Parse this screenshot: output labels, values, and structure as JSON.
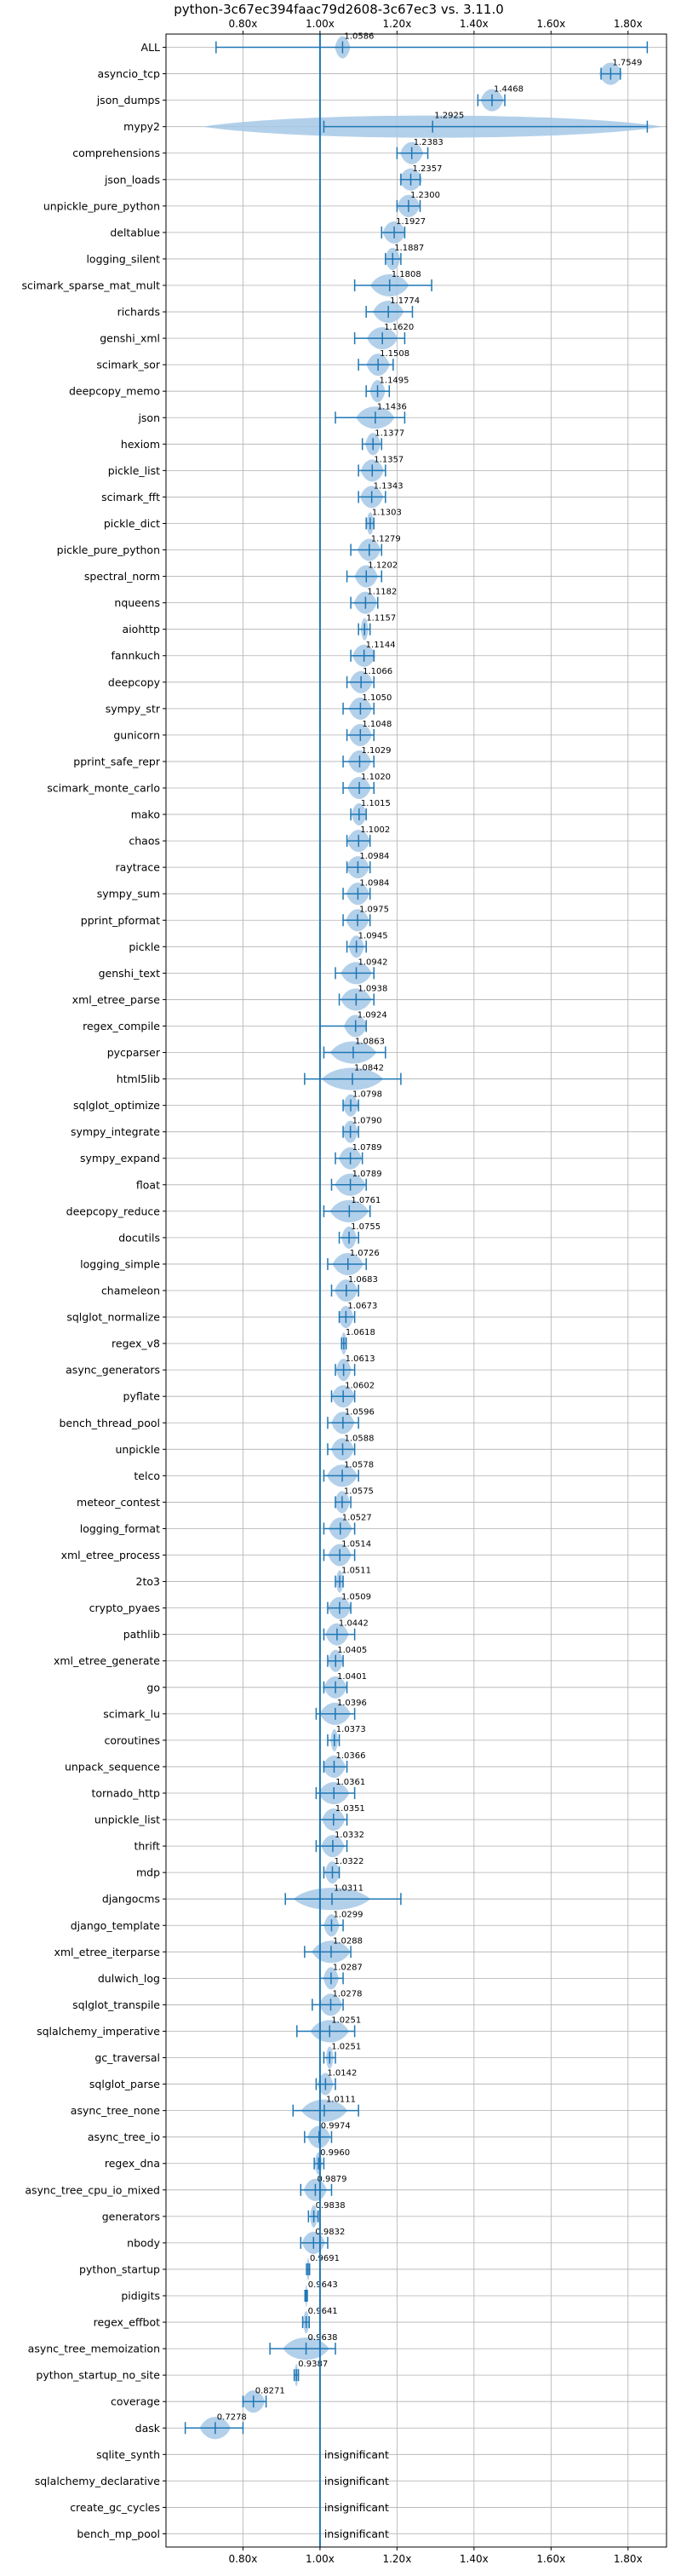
{
  "chart_data": {
    "type": "violin",
    "title": "python-3c67ec394faac79d2608-3c67ec3 vs. 3.11.0",
    "xlim": [
      0.6,
      1.9
    ],
    "xticks": [
      0.8,
      1.0,
      1.2,
      1.4,
      1.6,
      1.8
    ],
    "xtick_labels": [
      "0.80x",
      "1.00x",
      "1.20x",
      "1.40x",
      "1.60x",
      "1.80x"
    ],
    "reference_line": 1.0,
    "grid": true,
    "colors": {
      "violin": "#a6c8e6",
      "whisker": "#1f77b4",
      "grid": "#b0b0b0",
      "axis": "#000000"
    },
    "insignificant_label": "insignificant",
    "benchmarks": [
      {
        "name": "ALL",
        "value": 1.0586,
        "label": "1.0586",
        "min": 0.73,
        "max": 1.85,
        "spread": 0.02
      },
      {
        "name": "asyncio_tcp",
        "value": 1.7549,
        "label": "1.7549",
        "min": 1.73,
        "max": 1.78,
        "spread": 0.03
      },
      {
        "name": "json_dumps",
        "value": 1.4468,
        "label": "1.4468",
        "min": 1.41,
        "max": 1.48,
        "spread": 0.03
      },
      {
        "name": "mypy2",
        "value": 1.2925,
        "label": "1.2925",
        "min": 1.01,
        "max": 1.85,
        "spread": 0.6
      },
      {
        "name": "comprehensions",
        "value": 1.2383,
        "label": "1.2383",
        "min": 1.2,
        "max": 1.28,
        "spread": 0.03
      },
      {
        "name": "json_loads",
        "value": 1.2357,
        "label": "1.2357",
        "min": 1.21,
        "max": 1.26,
        "spread": 0.03
      },
      {
        "name": "unpickle_pure_python",
        "value": 1.23,
        "label": "1.2300",
        "min": 1.2,
        "max": 1.26,
        "spread": 0.03
      },
      {
        "name": "deltablue",
        "value": 1.1927,
        "label": "1.1927",
        "min": 1.16,
        "max": 1.22,
        "spread": 0.03
      },
      {
        "name": "logging_silent",
        "value": 1.1887,
        "label": "1.1887",
        "min": 1.17,
        "max": 1.21,
        "spread": 0.02
      },
      {
        "name": "scimark_sparse_mat_mult",
        "value": 1.1808,
        "label": "1.1808",
        "min": 1.09,
        "max": 1.29,
        "spread": 0.05
      },
      {
        "name": "richards",
        "value": 1.1774,
        "label": "1.1774",
        "min": 1.12,
        "max": 1.24,
        "spread": 0.04
      },
      {
        "name": "genshi_xml",
        "value": 1.162,
        "label": "1.1620",
        "min": 1.09,
        "max": 1.22,
        "spread": 0.04
      },
      {
        "name": "scimark_sor",
        "value": 1.1508,
        "label": "1.1508",
        "min": 1.1,
        "max": 1.19,
        "spread": 0.03
      },
      {
        "name": "deepcopy_memo",
        "value": 1.1495,
        "label": "1.1495",
        "min": 1.12,
        "max": 1.18,
        "spread": 0.02
      },
      {
        "name": "json",
        "value": 1.1436,
        "label": "1.1436",
        "min": 1.04,
        "max": 1.22,
        "spread": 0.05
      },
      {
        "name": "hexiom",
        "value": 1.1377,
        "label": "1.1377",
        "min": 1.11,
        "max": 1.16,
        "spread": 0.02
      },
      {
        "name": "pickle_list",
        "value": 1.1357,
        "label": "1.1357",
        "min": 1.1,
        "max": 1.17,
        "spread": 0.03
      },
      {
        "name": "scimark_fft",
        "value": 1.1343,
        "label": "1.1343",
        "min": 1.1,
        "max": 1.17,
        "spread": 0.03
      },
      {
        "name": "pickle_dict",
        "value": 1.1303,
        "label": "1.1303",
        "min": 1.12,
        "max": 1.14,
        "spread": 0.01
      },
      {
        "name": "pickle_pure_python",
        "value": 1.1279,
        "label": "1.1279",
        "min": 1.08,
        "max": 1.16,
        "spread": 0.03
      },
      {
        "name": "spectral_norm",
        "value": 1.1202,
        "label": "1.1202",
        "min": 1.07,
        "max": 1.16,
        "spread": 0.03
      },
      {
        "name": "nqueens",
        "value": 1.1182,
        "label": "1.1182",
        "min": 1.08,
        "max": 1.15,
        "spread": 0.03
      },
      {
        "name": "aiohttp",
        "value": 1.1157,
        "label": "1.1157",
        "min": 1.1,
        "max": 1.13,
        "spread": 0.01
      },
      {
        "name": "fannkuch",
        "value": 1.1144,
        "label": "1.1144",
        "min": 1.08,
        "max": 1.14,
        "spread": 0.03
      },
      {
        "name": "deepcopy",
        "value": 1.1066,
        "label": "1.1066",
        "min": 1.07,
        "max": 1.14,
        "spread": 0.03
      },
      {
        "name": "sympy_str",
        "value": 1.105,
        "label": "1.1050",
        "min": 1.06,
        "max": 1.14,
        "spread": 0.03
      },
      {
        "name": "gunicorn",
        "value": 1.1048,
        "label": "1.1048",
        "min": 1.07,
        "max": 1.14,
        "spread": 0.03
      },
      {
        "name": "pprint_safe_repr",
        "value": 1.1029,
        "label": "1.1029",
        "min": 1.06,
        "max": 1.14,
        "spread": 0.03
      },
      {
        "name": "scimark_monte_carlo",
        "value": 1.102,
        "label": "1.1020",
        "min": 1.06,
        "max": 1.14,
        "spread": 0.03
      },
      {
        "name": "mako",
        "value": 1.1015,
        "label": "1.1015",
        "min": 1.08,
        "max": 1.12,
        "spread": 0.02
      },
      {
        "name": "chaos",
        "value": 1.1002,
        "label": "1.1002",
        "min": 1.07,
        "max": 1.13,
        "spread": 0.03
      },
      {
        "name": "raytrace",
        "value": 1.0984,
        "label": "1.0984",
        "min": 1.07,
        "max": 1.13,
        "spread": 0.03
      },
      {
        "name": "sympy_sum",
        "value": 1.0984,
        "label": "1.0984",
        "min": 1.06,
        "max": 1.13,
        "spread": 0.03
      },
      {
        "name": "pprint_pformat",
        "value": 1.0975,
        "label": "1.0975",
        "min": 1.06,
        "max": 1.13,
        "spread": 0.03
      },
      {
        "name": "pickle",
        "value": 1.0945,
        "label": "1.0945",
        "min": 1.07,
        "max": 1.12,
        "spread": 0.02
      },
      {
        "name": "genshi_text",
        "value": 1.0942,
        "label": "1.0942",
        "min": 1.04,
        "max": 1.14,
        "spread": 0.04
      },
      {
        "name": "xml_etree_parse",
        "value": 1.0938,
        "label": "1.0938",
        "min": 1.05,
        "max": 1.14,
        "spread": 0.04
      },
      {
        "name": "regex_compile",
        "value": 1.0924,
        "label": "1.0924",
        "min": 1.0,
        "max": 1.12,
        "spread": 0.03
      },
      {
        "name": "pycparser",
        "value": 1.0863,
        "label": "1.0863",
        "min": 1.01,
        "max": 1.17,
        "spread": 0.06
      },
      {
        "name": "html5lib",
        "value": 1.0842,
        "label": "1.0842",
        "min": 0.96,
        "max": 1.21,
        "spread": 0.08
      },
      {
        "name": "sqlglot_optimize",
        "value": 1.0798,
        "label": "1.0798",
        "min": 1.06,
        "max": 1.1,
        "spread": 0.02
      },
      {
        "name": "sympy_integrate",
        "value": 1.079,
        "label": "1.0790",
        "min": 1.06,
        "max": 1.1,
        "spread": 0.02
      },
      {
        "name": "sympy_expand",
        "value": 1.0789,
        "label": "1.0789",
        "min": 1.04,
        "max": 1.11,
        "spread": 0.03
      },
      {
        "name": "float",
        "value": 1.0789,
        "label": "1.0789",
        "min": 1.03,
        "max": 1.12,
        "spread": 0.04
      },
      {
        "name": "deepcopy_reduce",
        "value": 1.0761,
        "label": "1.0761",
        "min": 1.01,
        "max": 1.13,
        "spread": 0.05
      },
      {
        "name": "docutils",
        "value": 1.0755,
        "label": "1.0755",
        "min": 1.05,
        "max": 1.1,
        "spread": 0.02
      },
      {
        "name": "logging_simple",
        "value": 1.0726,
        "label": "1.0726",
        "min": 1.02,
        "max": 1.12,
        "spread": 0.04
      },
      {
        "name": "chameleon",
        "value": 1.0683,
        "label": "1.0683",
        "min": 1.03,
        "max": 1.1,
        "spread": 0.03
      },
      {
        "name": "sqlglot_normalize",
        "value": 1.0673,
        "label": "1.0673",
        "min": 1.05,
        "max": 1.09,
        "spread": 0.02
      },
      {
        "name": "regex_v8",
        "value": 1.0618,
        "label": "1.0618",
        "min": 1.056,
        "max": 1.068,
        "spread": 0.008
      },
      {
        "name": "async_generators",
        "value": 1.0613,
        "label": "1.0613",
        "min": 1.04,
        "max": 1.09,
        "spread": 0.02
      },
      {
        "name": "pyflate",
        "value": 1.0602,
        "label": "1.0602",
        "min": 1.03,
        "max": 1.09,
        "spread": 0.03
      },
      {
        "name": "bench_thread_pool",
        "value": 1.0596,
        "label": "1.0596",
        "min": 1.02,
        "max": 1.1,
        "spread": 0.03
      },
      {
        "name": "unpickle",
        "value": 1.0588,
        "label": "1.0588",
        "min": 1.02,
        "max": 1.09,
        "spread": 0.03
      },
      {
        "name": "telco",
        "value": 1.0578,
        "label": "1.0578",
        "min": 1.01,
        "max": 1.1,
        "spread": 0.04
      },
      {
        "name": "meteor_contest",
        "value": 1.0575,
        "label": "1.0575",
        "min": 1.04,
        "max": 1.08,
        "spread": 0.02
      },
      {
        "name": "logging_format",
        "value": 1.0527,
        "label": "1.0527",
        "min": 1.01,
        "max": 1.09,
        "spread": 0.03
      },
      {
        "name": "xml_etree_process",
        "value": 1.0514,
        "label": "1.0514",
        "min": 1.01,
        "max": 1.09,
        "spread": 0.03
      },
      {
        "name": "2to3",
        "value": 1.0511,
        "label": "1.0511",
        "min": 1.04,
        "max": 1.06,
        "spread": 0.01
      },
      {
        "name": "crypto_pyaes",
        "value": 1.0509,
        "label": "1.0509",
        "min": 1.02,
        "max": 1.08,
        "spread": 0.03
      },
      {
        "name": "pathlib",
        "value": 1.0442,
        "label": "1.0442",
        "min": 1.01,
        "max": 1.09,
        "spread": 0.03
      },
      {
        "name": "xml_etree_generate",
        "value": 1.0405,
        "label": "1.0405",
        "min": 1.02,
        "max": 1.06,
        "spread": 0.02
      },
      {
        "name": "go",
        "value": 1.0401,
        "label": "1.0401",
        "min": 1.01,
        "max": 1.07,
        "spread": 0.03
      },
      {
        "name": "scimark_lu",
        "value": 1.0396,
        "label": "1.0396",
        "min": 0.99,
        "max": 1.09,
        "spread": 0.04
      },
      {
        "name": "coroutines",
        "value": 1.0373,
        "label": "1.0373",
        "min": 1.02,
        "max": 1.05,
        "spread": 0.01
      },
      {
        "name": "unpack_sequence",
        "value": 1.0366,
        "label": "1.0366",
        "min": 1.01,
        "max": 1.07,
        "spread": 0.03
      },
      {
        "name": "tornado_http",
        "value": 1.0361,
        "label": "1.0361",
        "min": 0.99,
        "max": 1.09,
        "spread": 0.04
      },
      {
        "name": "unpickle_list",
        "value": 1.0351,
        "label": "1.0351",
        "min": 1.0,
        "max": 1.07,
        "spread": 0.03
      },
      {
        "name": "thrift",
        "value": 1.0332,
        "label": "1.0332",
        "min": 0.99,
        "max": 1.07,
        "spread": 0.03
      },
      {
        "name": "mdp",
        "value": 1.0322,
        "label": "1.0322",
        "min": 1.01,
        "max": 1.05,
        "spread": 0.02
      },
      {
        "name": "djangocms",
        "value": 1.0311,
        "label": "1.0311",
        "min": 0.91,
        "max": 1.21,
        "spread": 0.1
      },
      {
        "name": "django_template",
        "value": 1.0299,
        "label": "1.0299",
        "min": 1.0,
        "max": 1.06,
        "spread": 0.02
      },
      {
        "name": "xml_etree_iterparse",
        "value": 1.0288,
        "label": "1.0288",
        "min": 0.96,
        "max": 1.08,
        "spread": 0.05
      },
      {
        "name": "dulwich_log",
        "value": 1.0287,
        "label": "1.0287",
        "min": 1.0,
        "max": 1.06,
        "spread": 0.02
      },
      {
        "name": "sqlglot_transpile",
        "value": 1.0278,
        "label": "1.0278",
        "min": 0.98,
        "max": 1.06,
        "spread": 0.03
      },
      {
        "name": "sqlalchemy_imperative",
        "value": 1.0251,
        "label": "1.0251",
        "min": 0.94,
        "max": 1.09,
        "spread": 0.05
      },
      {
        "name": "gc_traversal",
        "value": 1.0251,
        "label": "1.0251",
        "min": 1.01,
        "max": 1.04,
        "spread": 0.01
      },
      {
        "name": "sqlglot_parse",
        "value": 1.0142,
        "label": "1.0142",
        "min": 0.99,
        "max": 1.04,
        "spread": 0.02
      },
      {
        "name": "async_tree_none",
        "value": 1.0111,
        "label": "1.0111",
        "min": 0.93,
        "max": 1.1,
        "spread": 0.06
      },
      {
        "name": "async_tree_io",
        "value": 0.9974,
        "label": "0.9974",
        "min": 0.96,
        "max": 1.03,
        "spread": 0.03
      },
      {
        "name": "regex_dna",
        "value": 0.996,
        "label": "0.9960",
        "min": 0.985,
        "max": 1.01,
        "spread": 0.01
      },
      {
        "name": "async_tree_cpu_io_mixed",
        "value": 0.9879,
        "label": "0.9879",
        "min": 0.95,
        "max": 1.03,
        "spread": 0.03
      },
      {
        "name": "generators",
        "value": 0.9838,
        "label": "0.9838",
        "min": 0.97,
        "max": 0.995,
        "spread": 0.01
      },
      {
        "name": "nbody",
        "value": 0.9832,
        "label": "0.9832",
        "min": 0.95,
        "max": 1.02,
        "spread": 0.03
      },
      {
        "name": "python_startup",
        "value": 0.9691,
        "label": "0.9691",
        "min": 0.965,
        "max": 0.973,
        "spread": 0.004
      },
      {
        "name": "pidigits",
        "value": 0.9643,
        "label": "0.9643",
        "min": 0.961,
        "max": 0.967,
        "spread": 0.003
      },
      {
        "name": "regex_effbot",
        "value": 0.9641,
        "label": "0.9641",
        "min": 0.955,
        "max": 0.972,
        "spread": 0.008
      },
      {
        "name": "async_tree_memoization",
        "value": 0.9638,
        "label": "0.9638",
        "min": 0.87,
        "max": 1.04,
        "spread": 0.06
      },
      {
        "name": "python_startup_no_site",
        "value": 0.9387,
        "label": "0.9387",
        "min": 0.933,
        "max": 0.944,
        "spread": 0.005
      },
      {
        "name": "coverage",
        "value": 0.8271,
        "label": "0.8271",
        "min": 0.8,
        "max": 0.86,
        "spread": 0.03
      },
      {
        "name": "dask",
        "value": 0.7278,
        "label": "0.7278",
        "min": 0.65,
        "max": 0.8,
        "spread": 0.04
      },
      {
        "name": "sqlite_synth",
        "insignificant": true
      },
      {
        "name": "sqlalchemy_declarative",
        "insignificant": true
      },
      {
        "name": "create_gc_cycles",
        "insignificant": true
      },
      {
        "name": "bench_mp_pool",
        "insignificant": true
      }
    ]
  }
}
